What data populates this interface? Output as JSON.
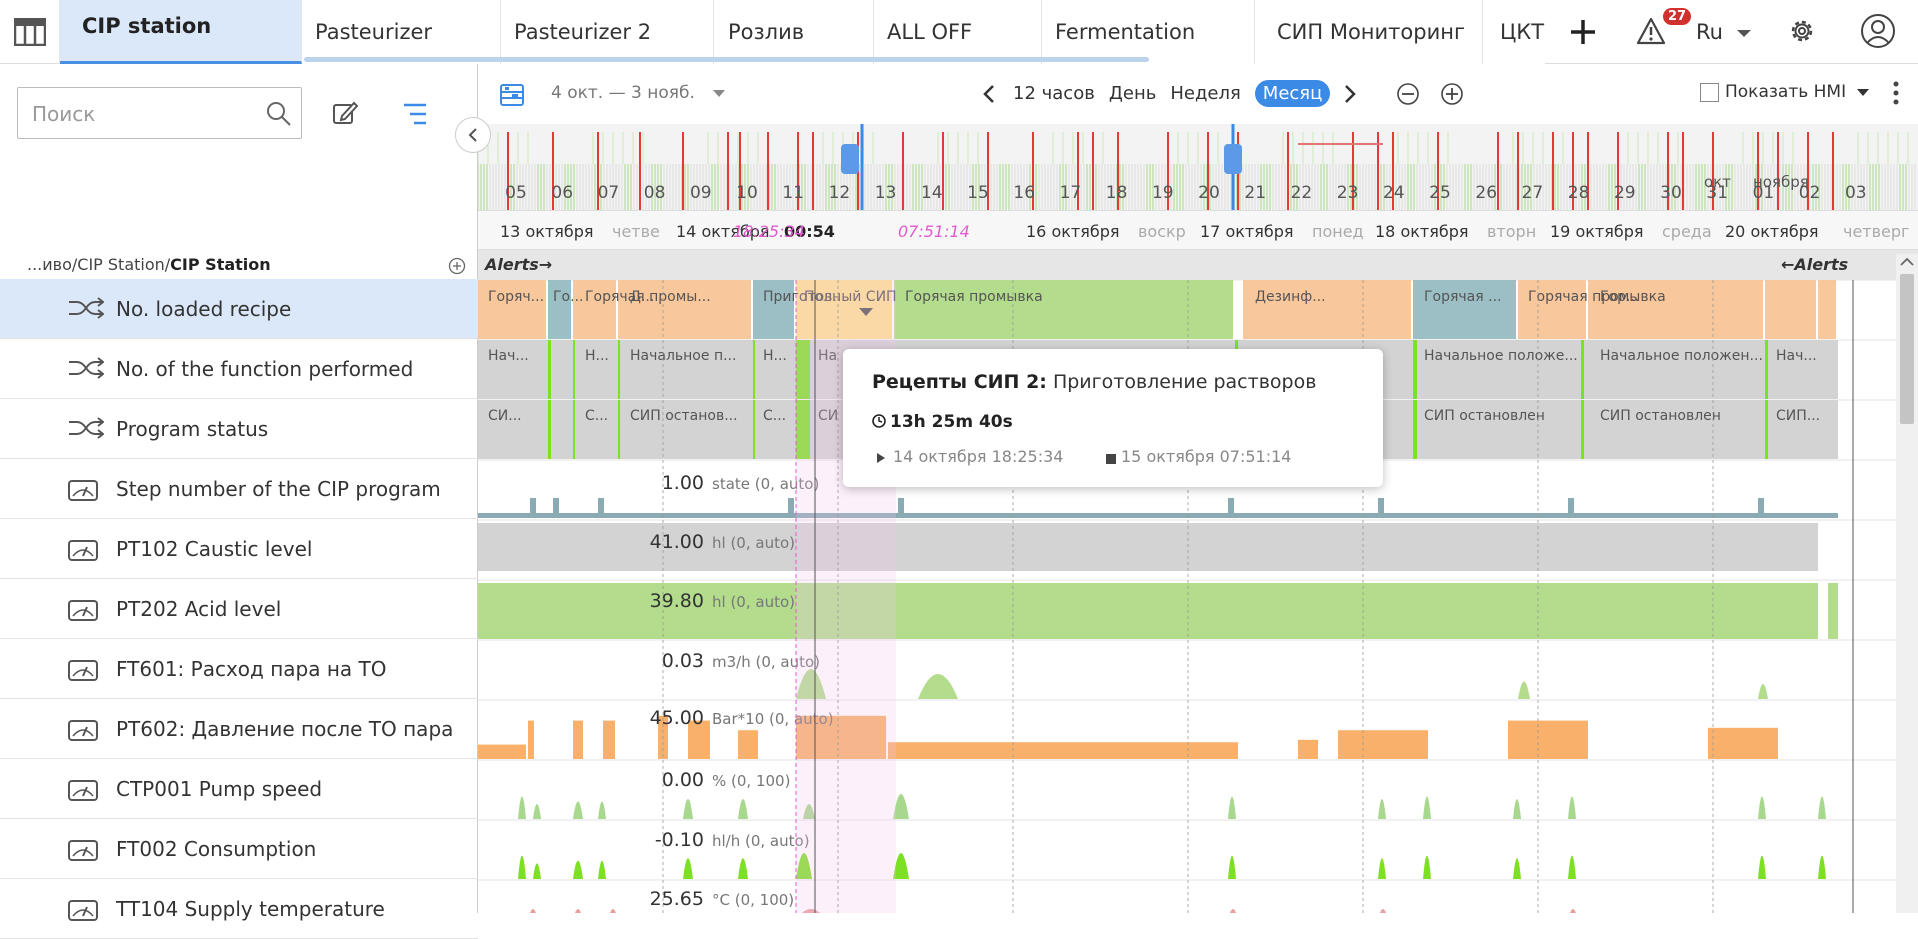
{
  "tabs": [
    {
      "label": "CIP station",
      "active": true
    },
    {
      "label": "Pasteurizer"
    },
    {
      "label": "Pasteurizer 2"
    },
    {
      "label": "Розлив"
    },
    {
      "label": "ALL OFF"
    },
    {
      "label": "Fermentation"
    },
    {
      "label": "СИП Мониторинг"
    },
    {
      "label": "ЦКТ"
    }
  ],
  "header": {
    "alerts_count": "27",
    "language": "Ru"
  },
  "sidebar": {
    "search_placeholder": "Поиск",
    "breadcrumb_path": "...иво/CIP Station/",
    "breadcrumb_current": "CIP Station",
    "rows": [
      {
        "label": "No. loaded recipe",
        "icon": "shuffle-icon",
        "selected": true
      },
      {
        "label": "No. of the function performed",
        "icon": "shuffle-icon"
      },
      {
        "label": "Program status",
        "icon": "shuffle-icon"
      },
      {
        "label": "Step number of the CIP program",
        "icon": "gauge-icon"
      },
      {
        "label": "PT102 Caustic level",
        "icon": "gauge-icon"
      },
      {
        "label": "PT202 Acid level",
        "icon": "gauge-icon"
      },
      {
        "label": "FT601: Расход пара на ТО",
        "icon": "gauge-icon"
      },
      {
        "label": "PT602: Давление после ТО пара",
        "icon": "gauge-icon"
      },
      {
        "label": "CTP001 Pump speed",
        "icon": "gauge-icon"
      },
      {
        "label": "FT002 Consumption",
        "icon": "gauge-icon"
      },
      {
        "label": "TT104 Supply temperature",
        "icon": "gauge-icon"
      }
    ]
  },
  "toolbar": {
    "range": "4 окт. — 3 нояб.",
    "nav": [
      "12 часов",
      "День",
      "Неделя"
    ],
    "active_period": "Месяц",
    "show_hmi": "Показать HMI"
  },
  "overview_days": [
    "05",
    "06",
    "07",
    "08",
    "09",
    "10",
    "11",
    "12",
    "13",
    "14",
    "15",
    "16",
    "17",
    "18",
    "19",
    "20",
    "21",
    "22",
    "23",
    "24",
    "25",
    "26",
    "27",
    "28",
    "29",
    "30",
    "31",
    "01",
    "02",
    "03"
  ],
  "overview_months": [
    "окт",
    "ноября"
  ],
  "day_axis": [
    {
      "date": "13 октября",
      "dow": "четве"
    },
    {
      "date": "14 октября",
      "dow": ""
    },
    {
      "date": "16 октября",
      "dow": "воскр"
    },
    {
      "date": "17 октября",
      "dow": "понед"
    },
    {
      "date": "18 октября",
      "dow": "вторн"
    },
    {
      "date": "19 октября",
      "dow": "среда"
    },
    {
      "date": "20 октября",
      "dow": "четверг"
    }
  ],
  "cursor": {
    "time": "00:54",
    "start_marker": "18:25:34",
    "end_marker": "07:51:14"
  },
  "alerts": {
    "left": "Alerts→",
    "right": "←Alerts"
  },
  "recipe_segments": [
    "Горяч...",
    "Го...",
    "Горячая промы...",
    "Д...",
    "Приготов...",
    "Полный СИП",
    "Горячая промывка",
    "Дезинф...",
    "Горячая ...",
    "Горячая промывка",
    "Гор..."
  ],
  "function_segments": [
    "Нач...",
    "Н...",
    "Начальное п...",
    "Н...",
    "На",
    "Начальное положе...",
    "Начальное положен...",
    "Нач..."
  ],
  "status_segments": [
    "СИ...",
    "С...",
    "СИП останов...",
    "С...",
    "СИ",
    "СИП остановлен",
    "СИП остановлен",
    "СИП..."
  ],
  "values": [
    {
      "value": "1.00",
      "unit": "state (0, auto)"
    },
    {
      "value": "41.00",
      "unit": "hl (0, auto)"
    },
    {
      "value": "39.80",
      "unit": "hl (0, auto)"
    },
    {
      "value": "0.03",
      "unit": "m3/h (0, auto)"
    },
    {
      "value": "45.00",
      "unit": "Bar*10 (0, auto)"
    },
    {
      "value": "0.00",
      "unit": "% (0, 100)"
    },
    {
      "value": "-0.10",
      "unit": "hl/h (0, auto)"
    },
    {
      "value": "25.65",
      "unit": "°C (0, 100)"
    }
  ],
  "tooltip": {
    "recipe": "Рецепты СИП 2:",
    "name": "Приготовление растворов",
    "duration": "13h 25m 40s",
    "start": "14 октября 18:25:34",
    "end": "15 октября 07:51:14"
  },
  "colors": {
    "accent": "#3b8ae6",
    "hot_wash": "#f9c79c",
    "cip": "#b3dc8c",
    "prep": "#fce08e",
    "disinf": "#9bbfc4",
    "grey": "#d3d3d3",
    "green": "#7ee024",
    "orange": "#f8b06a",
    "alarm": "#e53935"
  }
}
